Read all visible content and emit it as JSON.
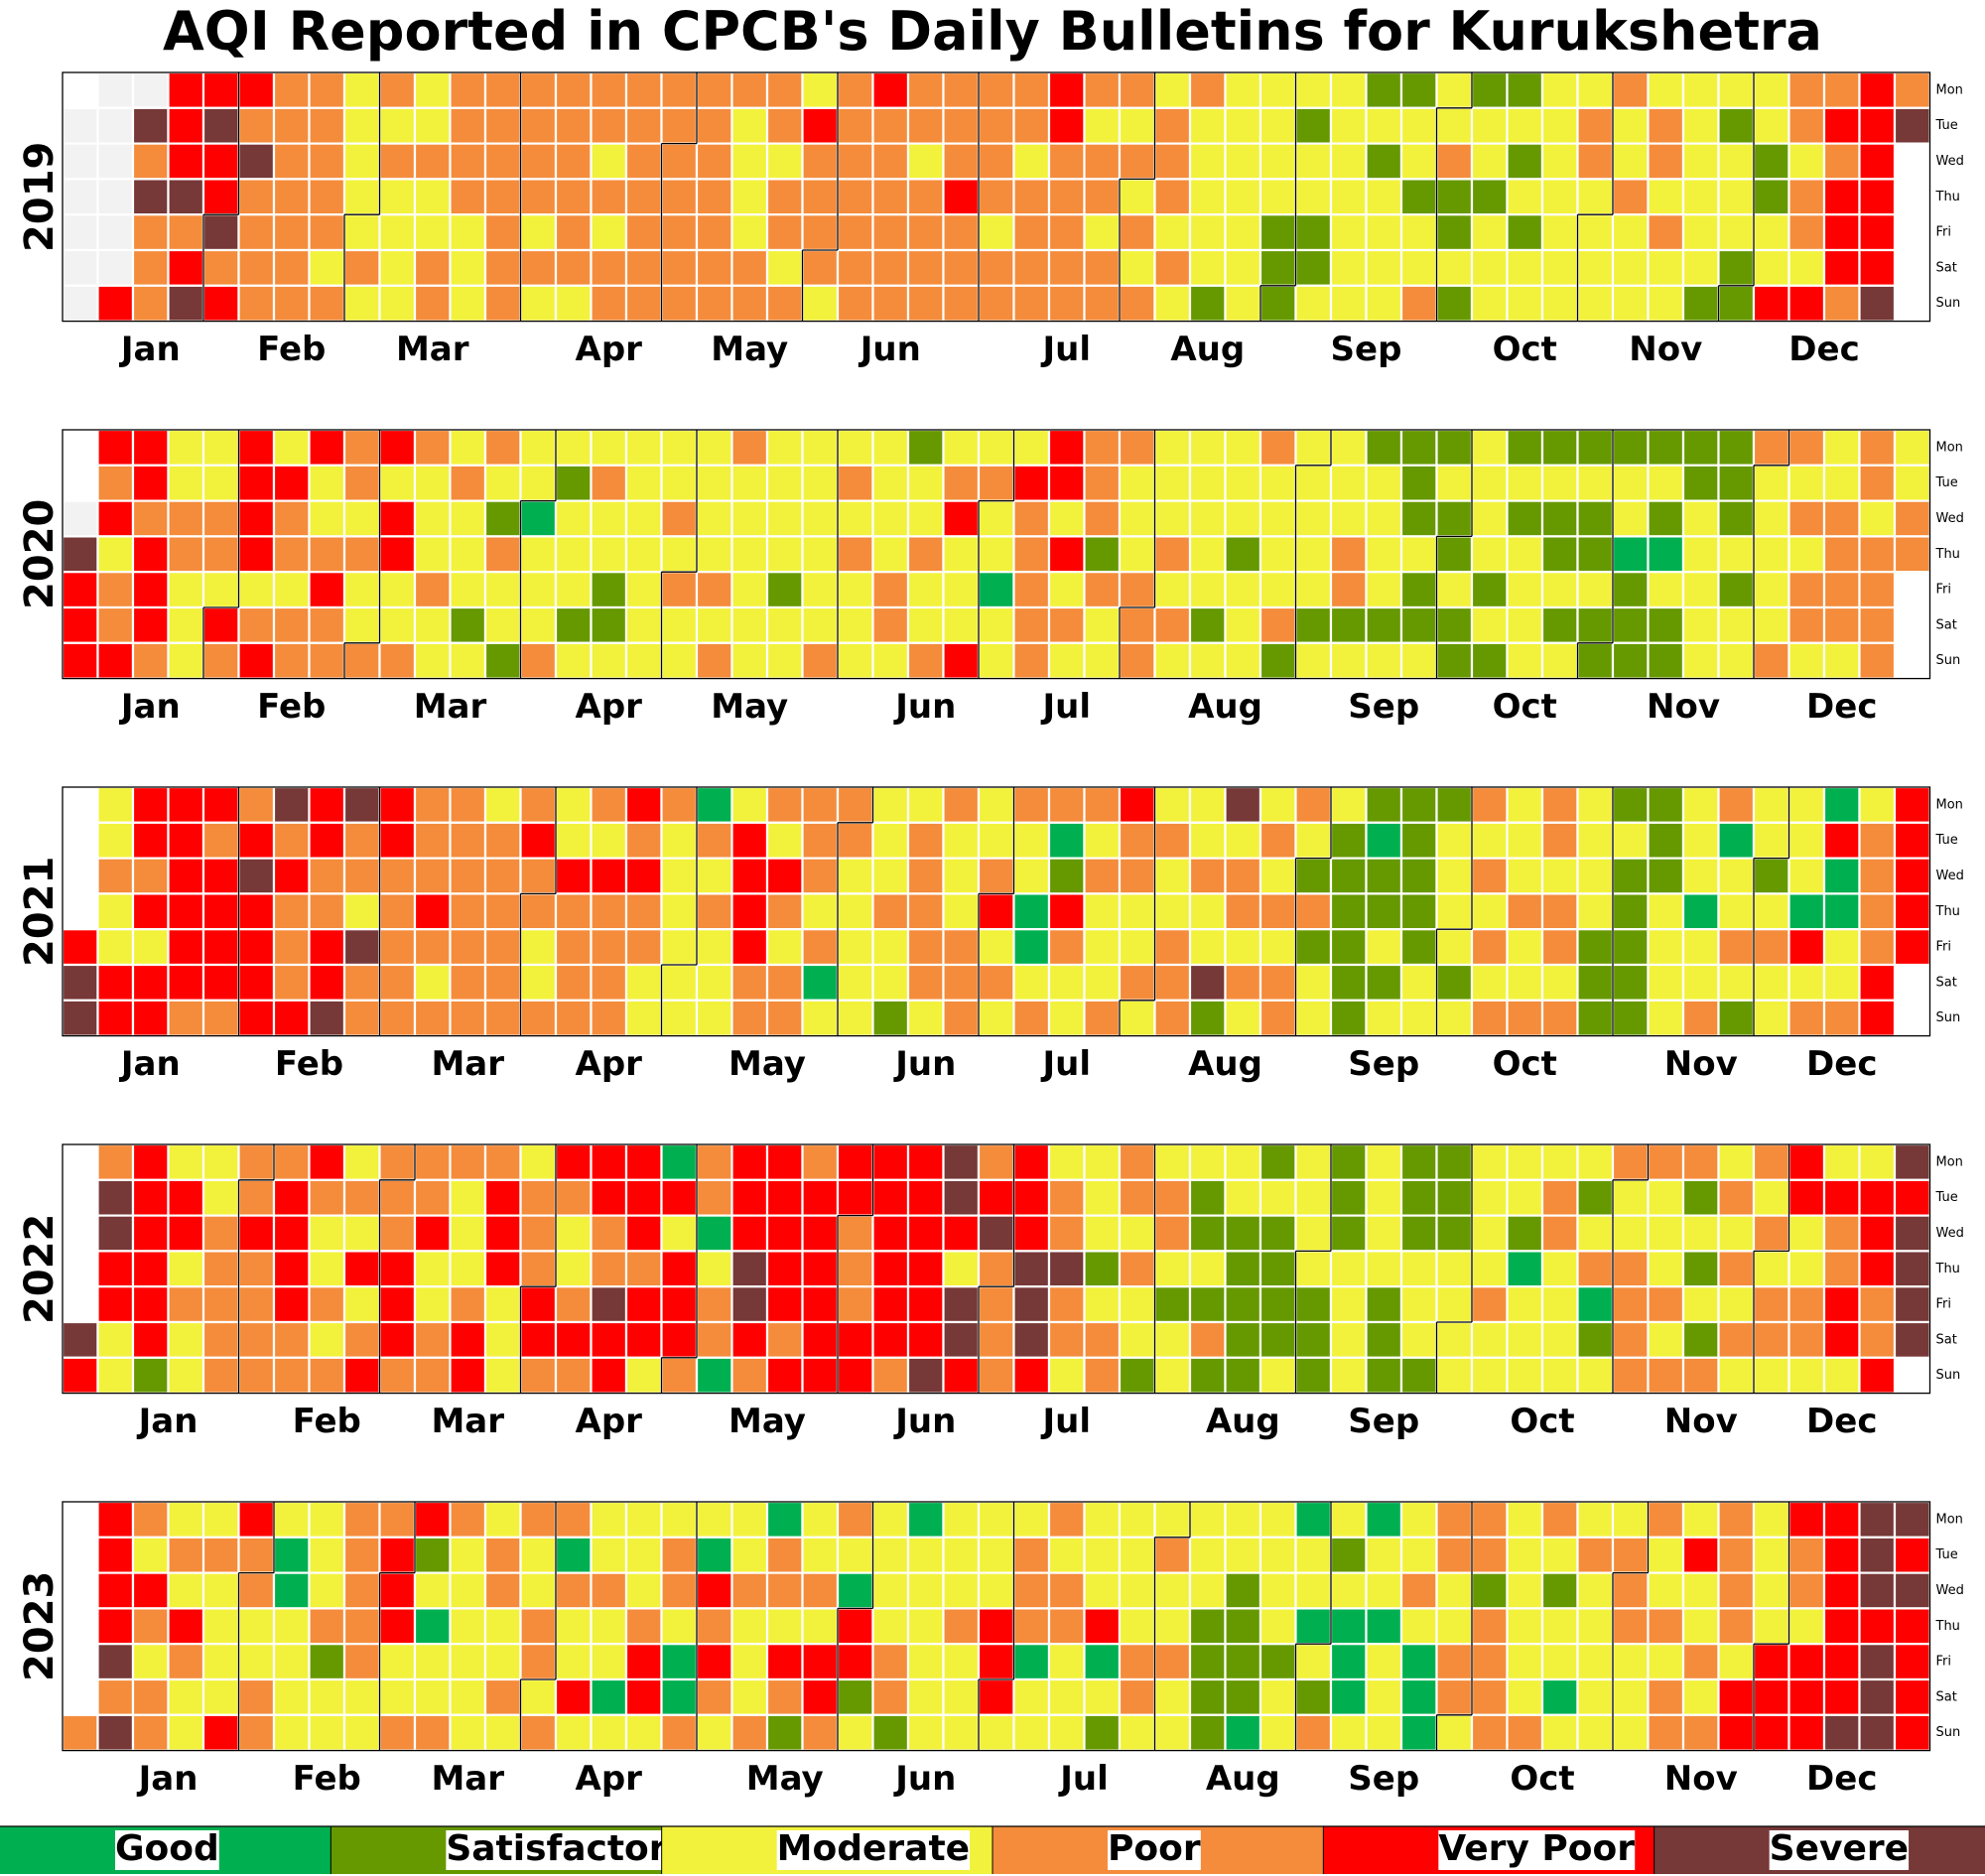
{
  "chart_data": {
    "type": "heatmap",
    "title": "AQI Reported in CPCB's Daily Bulletins for Kurukshetra",
    "weekdays": [
      "Mon",
      "Tue",
      "Wed",
      "Thu",
      "Fri",
      "Sat",
      "Sun"
    ],
    "months": [
      "Jan",
      "Feb",
      "Mar",
      "Apr",
      "May",
      "Jun",
      "Jul",
      "Aug",
      "Sep",
      "Oct",
      "Nov",
      "Dec"
    ],
    "categories": [
      {
        "name": "Good",
        "color": "#00b050"
      },
      {
        "name": "Satisfactory",
        "color": "#669900"
      },
      {
        "name": "Moderate",
        "color": "#f2f23c"
      },
      {
        "name": "Poor",
        "color": "#f48c3c"
      },
      {
        "name": "Very Poor",
        "color": "#ff0000"
      },
      {
        "name": "Severe",
        "color": "#773838"
      }
    ],
    "missing_color": "#f2f2f2",
    "encoding": "one digit per day from 1 January to 31 December: 0=Good 1=Satisfactory 2=Moderate 3=Poor 4=Very Poor 5=Severe 9=no data",
    "years": [
      {
        "year": "2019",
        "days": "999999999999495353334445345454453443533333333333333332322222323232222223223333332223333333333323233333323323233333333333333333333333322223333233232433332333333343333333323333333433333332333323333443333332332333232323233323232222212222222222211121221122222222121222212212232231121122122212121222222222233222232232222332322222222121222112211224332332434344434444445353535342355555355545535543334333554355524335455534534224324540354455345455545455441245"
      },
      {
        "year": "2020",
        "days": "954444342334443444322332222233243444423424332334223433332322342442233222322232221232132212202223212221223221122222222223232222223233222222222212222222232323222222233212232232342224232202224333334424232333132232223332223232222221222212223222231222221222233121222212111211212112112222121121222212112121211211122011112102111122222111212232222233232332223333233233332233333044444434404445455555455435454445554445555555055554555545254555545434355544444545454444455455545355234454545"
      },
      {
        "year": "2021",
        "days": "455223224444342444444443434444334544445343334443344553325334433333333432333333332333333343322322433333243333434332232222220323222244443332432333332302332222222232212333332322233322342323220023301432232322234332232232233322322515233232232323332131222111111101121211111221222212323232322232233323323222211112111111112222222022330223212212322222042304002232333344444443333344444343445444444544454454554445453345555453455455455553544522323433323443045444444"
      },
      {
        "year": "2022",
        "days": "54355442244444412442322223333333433333444433432232323242343334443334223332223443444222233344343223434433544444344204244433302330444554344444343444444443334444444434444445554255434533334445554233533222212333323221233212221121312211111121111222221111112222222211111122211112222222232222102222332222212301232233333222323312121323232323232332442233224334422444334545555443545445443434345443334343434443243334342440443444"
      },
      {
        "year": "2023",
        "days": "3444453532432332324322232222443322332002222222312233333223444223412022332222222332232322332330322422232202222344223320032043432223222303324312232443320441222223310222222222322222244422333022323322222240212222332232232222211112211110222212202202132120002022022222320003322332331333322222233212202232222223332223223233242232333332442222444433244444444455554555545444454544444434444444444444443433332445434404444444"
      }
    ]
  },
  "legend": {
    "items": [
      "Good",
      "Satisfactory",
      "Moderate",
      "Poor",
      "Very Poor",
      "Severe"
    ],
    "colors": [
      "#00b050",
      "#669900",
      "#f2f23c",
      "#f48c3c",
      "#ff0000",
      "#773838"
    ]
  }
}
